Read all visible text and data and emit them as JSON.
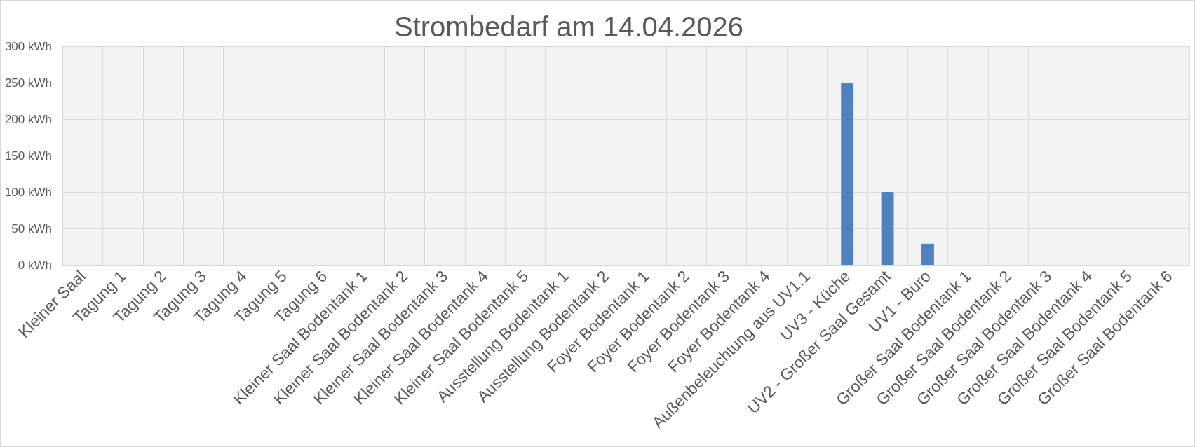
{
  "chart_data": {
    "type": "bar",
    "title": "Strombedarf am 14.04.2026",
    "categories": [
      "Kleiner Saal",
      "Tagung 1",
      "Tagung 2",
      "Tagung 3",
      "Tagung 4",
      "Tagung 5",
      "Tagung 6",
      "Kleiner Saal Bodentank 1",
      "Kleiner Saal Bodentank 2",
      "Kleiner Saal Bodentank 3",
      "Kleiner Saal Bodentank 4",
      "Kleiner Saal Bodentank 5",
      "Ausstellung Bodentank 1",
      "Ausstellung Bodentank 2",
      "Foyer Bodentank 1",
      "Foyer Bodentank 2",
      "Foyer Bodentank 3",
      "Foyer Bodentank 4",
      "Außenbeleuchtung aus UV1.1",
      "UV3 - Küche",
      "UV2 - Großer Saal Gesamt",
      "UV1 - Büro",
      "Großer Saal Bodentank 1",
      "Großer Saal Bodentank 2",
      "Großer Saal Bodentank 3",
      "Großer Saal Bodentank 4",
      "Großer Saal Bodentank 5",
      "Großer Saal Bodentank 6"
    ],
    "values": [
      0,
      0,
      0,
      0,
      0,
      0,
      0,
      0,
      0,
      0,
      0,
      0,
      0,
      0,
      0,
      0,
      0,
      0,
      0,
      250,
      100,
      29,
      0,
      0,
      0,
      0,
      0,
      0
    ],
    "color": "#4f81bd",
    "ylim": [
      0,
      300
    ],
    "yticks": [
      {
        "value": 0,
        "label": "0 kWh"
      },
      {
        "value": 50,
        "label": "50 kWh"
      },
      {
        "value": 100,
        "label": "100 kWh"
      },
      {
        "value": 150,
        "label": "150 kWh"
      },
      {
        "value": 200,
        "label": "200 kWh"
      },
      {
        "value": 250,
        "label": "250 kWh"
      },
      {
        "value": 300,
        "label": "300 kWh"
      }
    ],
    "grid": true
  }
}
